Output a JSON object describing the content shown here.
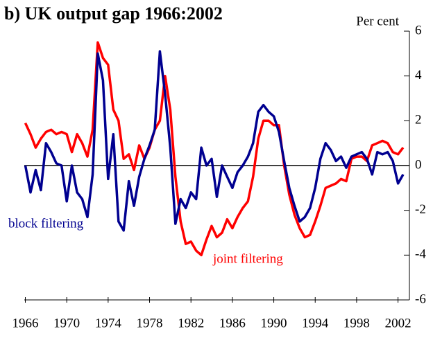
{
  "chart_data": {
    "type": "line",
    "title": "b) UK output gap 1966:2002",
    "y_axis_label": "Per cent",
    "y_axis_side": "right",
    "annotations": [
      "block filtering",
      "joint filtering"
    ],
    "x": [
      1966,
      1966.5,
      1967,
      1967.5,
      1968,
      1968.5,
      1969,
      1969.5,
      1970,
      1970.5,
      1971,
      1971.5,
      1972,
      1972.5,
      1973,
      1973.5,
      1974,
      1974.5,
      1975,
      1975.5,
      1976,
      1976.5,
      1977,
      1977.5,
      1978,
      1978.5,
      1979,
      1979.5,
      1980,
      1980.5,
      1981,
      1981.5,
      1982,
      1982.5,
      1983,
      1983.5,
      1984,
      1984.5,
      1985,
      1985.5,
      1986,
      1986.5,
      1987,
      1987.5,
      1988,
      1988.5,
      1989,
      1989.5,
      1990,
      1990.5,
      1991,
      1991.5,
      1992,
      1992.5,
      1993,
      1993.5,
      1994,
      1994.5,
      1995,
      1995.5,
      1996,
      1996.5,
      1997,
      1997.5,
      1998,
      1998.5,
      1999,
      1999.5,
      2000,
      2000.5,
      2001,
      2001.5,
      2002,
      2002.5
    ],
    "series": [
      {
        "name": "block filtering",
        "color": "#000090",
        "values": [
          0.0,
          -1.2,
          -0.2,
          -1.1,
          1.0,
          0.6,
          0.1,
          0.0,
          -1.6,
          0.0,
          -1.2,
          -1.5,
          -2.3,
          -0.4,
          5.0,
          3.8,
          -0.6,
          1.4,
          -2.5,
          -2.9,
          -0.7,
          -1.8,
          -0.5,
          0.3,
          0.9,
          1.6,
          5.1,
          3.2,
          0.8,
          -2.6,
          -1.5,
          -1.9,
          -1.2,
          -1.5,
          0.8,
          0.0,
          0.3,
          -1.4,
          0.0,
          -0.5,
          -1.0,
          -0.3,
          0.0,
          0.4,
          1.0,
          2.4,
          2.7,
          2.4,
          2.2,
          1.5,
          0.2,
          -1.0,
          -1.8,
          -2.5,
          -2.3,
          -1.9,
          -1.0,
          0.3,
          1.0,
          0.7,
          0.2,
          0.4,
          -0.1,
          0.4,
          0.5,
          0.6,
          0.3,
          -0.4,
          0.6,
          0.5,
          0.6,
          0.2,
          -0.8,
          -0.4
        ]
      },
      {
        "name": "joint filtering",
        "color": "#ff0000",
        "values": [
          1.9,
          1.4,
          0.8,
          1.2,
          1.5,
          1.6,
          1.4,
          1.5,
          1.4,
          0.6,
          1.4,
          1.0,
          0.4,
          1.6,
          5.5,
          4.8,
          4.5,
          2.5,
          2.0,
          0.3,
          0.5,
          -0.2,
          0.9,
          0.3,
          0.8,
          1.6,
          2.0,
          4.0,
          2.5,
          -0.5,
          -2.5,
          -3.5,
          -3.4,
          -3.8,
          -4.0,
          -3.3,
          -2.7,
          -3.2,
          -3.0,
          -2.4,
          -2.8,
          -2.3,
          -1.9,
          -1.6,
          -0.5,
          1.2,
          2.0,
          2.0,
          1.8,
          1.8,
          0.0,
          -1.3,
          -2.2,
          -2.8,
          -3.2,
          -3.1,
          -2.5,
          -1.8,
          -1.0,
          -0.9,
          -0.8,
          -0.6,
          -0.7,
          0.3,
          0.4,
          0.4,
          0.2,
          0.9,
          1.0,
          1.1,
          1.0,
          0.6,
          0.5,
          0.8
        ]
      }
    ],
    "xlim": [
      1965.9,
      2003.1
    ],
    "xticks": [
      1966,
      1970,
      1974,
      1978,
      1982,
      1986,
      1990,
      1994,
      1998,
      2002
    ],
    "ylim": [
      -6,
      6
    ],
    "yticks": [
      -6,
      -4,
      -2,
      0,
      2,
      4,
      6
    ]
  }
}
